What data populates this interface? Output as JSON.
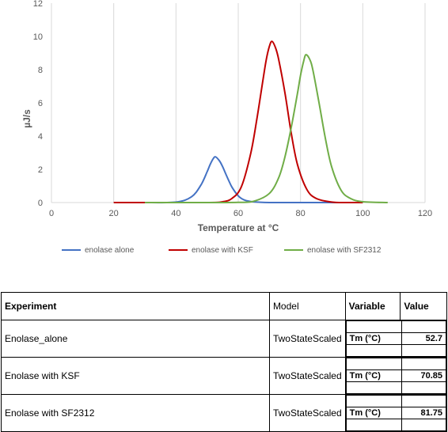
{
  "chart_data": {
    "type": "line",
    "xlabel": "Temperature at °C",
    "ylabel": "µJ/s",
    "xlim": [
      0,
      120
    ],
    "ylim": [
      0,
      12
    ],
    "xticks": [
      0,
      20,
      40,
      60,
      80,
      100,
      120
    ],
    "yticks": [
      0,
      2,
      4,
      6,
      8,
      10,
      12
    ],
    "grid": "vertical gridlines",
    "legend_position": "bottom",
    "series": [
      {
        "name": "enolase alone",
        "color": "#4472C4",
        "x": [
          30,
          40,
          45,
          48,
          50,
          51,
          52,
          52.7,
          54,
          55,
          56,
          57,
          58,
          60,
          62,
          65,
          70,
          80,
          90,
          100
        ],
        "y": [
          0,
          0.03,
          0.35,
          1.05,
          1.85,
          2.3,
          2.65,
          2.75,
          2.5,
          2.15,
          1.72,
          1.3,
          0.92,
          0.4,
          0.15,
          0.04,
          0,
          0,
          0,
          0
        ]
      },
      {
        "name": "enolase with KSF",
        "color": "#C00000",
        "x": [
          20,
          30,
          50,
          55,
          58,
          61,
          64,
          66,
          68,
          69,
          70,
          70.85,
          72,
          73,
          75,
          77,
          79,
          82,
          85,
          90,
          95,
          100
        ],
        "y": [
          0,
          0,
          0,
          0.05,
          0.25,
          0.95,
          2.95,
          5.05,
          7.45,
          8.6,
          9.4,
          9.7,
          9.3,
          8.6,
          6.6,
          4.2,
          2.3,
          0.8,
          0.25,
          0.03,
          0,
          0
        ]
      },
      {
        "name": "enolase with SF2312",
        "color": "#70AD47",
        "x": [
          30,
          50,
          60,
          65,
          70,
          73,
          75,
          77,
          79,
          80,
          81,
          81.75,
          83,
          84,
          86,
          88,
          90,
          93,
          96,
          100,
          108
        ],
        "y": [
          0,
          0,
          0.01,
          0.08,
          0.55,
          1.5,
          2.75,
          4.5,
          6.55,
          7.65,
          8.5,
          8.9,
          8.6,
          7.95,
          5.95,
          3.85,
          2.15,
          0.75,
          0.25,
          0.05,
          0
        ]
      }
    ]
  },
  "table": {
    "headers": {
      "experiment": "Experiment",
      "model": "Model",
      "variable": "Variable",
      "value": "Value"
    },
    "rows": [
      {
        "experiment": "Enolase_alone",
        "model": "TwoStateScaled",
        "variable": "Tm (°C)",
        "value": "52.7"
      },
      {
        "experiment": "Enolase with KSF",
        "model": "TwoStateScaled",
        "variable": "Tm (°C)",
        "value": "70.85"
      },
      {
        "experiment": "Enolase with SF2312",
        "model": "TwoStateScaled",
        "variable": "Tm (°C)",
        "value": "81.75"
      }
    ]
  }
}
